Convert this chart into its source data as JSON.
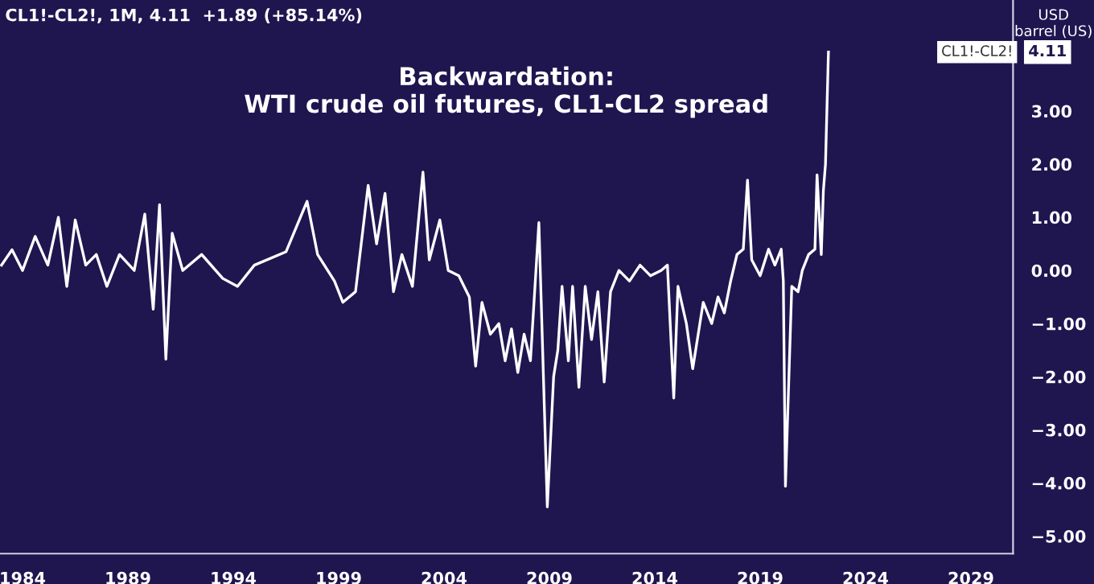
{
  "chart_data": {
    "type": "line",
    "title": "Backwardation:\nWTI crude oil futures, CL1-CL2 spread",
    "subtitle": "CL1!-CL2!, 1M, 4.11  +1.89 (+85.14%)",
    "ylabel": "USD\nbarrel (US)",
    "annotations": [
      "CL1!-CL2!",
      "4.11"
    ],
    "series": [
      {
        "color": "#ffffff",
        "x": [
          1983.0,
          1983.5,
          1984.0,
          1984.6,
          1985.2,
          1985.7,
          1986.1,
          1986.5,
          1987.0,
          1987.5,
          1988.0,
          1988.6,
          1989.3,
          1989.8,
          1990.2,
          1990.5,
          1990.8,
          1991.1,
          1991.6,
          1992.5,
          1993.5,
          1994.2,
          1995.0,
          1996.5,
          1997.5,
          1998.0,
          1998.8,
          1999.2,
          1999.8,
          2000.4,
          2000.8,
          2001.2,
          2001.6,
          2002.0,
          2002.5,
          2003.0,
          2003.3,
          2003.8,
          2004.2,
          2004.7,
          2005.2,
          2005.5,
          2005.8,
          2006.2,
          2006.6,
          2006.9,
          2007.2,
          2007.5,
          2007.8,
          2008.1,
          2008.5,
          2008.9,
          2009.2,
          2009.4,
          2009.6,
          2009.9,
          2010.1,
          2010.4,
          2010.7,
          2011.0,
          2011.3,
          2011.6,
          2011.9,
          2012.3,
          2012.8,
          2013.3,
          2013.8,
          2014.3,
          2014.6,
          2014.9,
          2015.1,
          2015.5,
          2015.8,
          2016.3,
          2016.7,
          2017.0,
          2017.3,
          2017.6,
          2017.9,
          2018.2,
          2018.4,
          2018.6,
          2019.0,
          2019.4,
          2019.7,
          2020.0,
          2020.1,
          2020.2,
          2020.5,
          2020.8,
          2021.0,
          2021.3,
          2021.6,
          2021.7,
          2021.9,
          2022.0,
          2022.1,
          2022.24
        ],
        "values": [
          0.1,
          0.39,
          0.0,
          0.64,
          0.1,
          1.0,
          -0.3,
          0.95,
          0.1,
          0.3,
          -0.3,
          0.3,
          0.0,
          1.06,
          -0.73,
          1.24,
          -1.67,
          0.7,
          0.0,
          0.3,
          -0.15,
          -0.3,
          0.1,
          0.35,
          1.3,
          0.3,
          -0.2,
          -0.6,
          -0.4,
          1.6,
          0.5,
          1.45,
          -0.4,
          0.3,
          -0.3,
          1.85,
          0.2,
          0.95,
          0.0,
          -0.1,
          -0.5,
          -1.8,
          -0.6,
          -1.2,
          -1.0,
          -1.7,
          -1.1,
          -1.92,
          -1.2,
          -1.7,
          0.9,
          -4.45,
          -2.0,
          -1.5,
          -0.3,
          -1.7,
          -0.3,
          -2.2,
          -0.3,
          -1.3,
          -0.4,
          -2.1,
          -0.4,
          0.0,
          -0.2,
          0.1,
          -0.1,
          0.0,
          0.1,
          -2.4,
          -0.3,
          -1.0,
          -1.85,
          -0.6,
          -1.0,
          -0.5,
          -0.8,
          -0.2,
          0.3,
          0.4,
          1.7,
          0.2,
          -0.1,
          0.4,
          0.1,
          0.4,
          -0.2,
          -4.06,
          -0.3,
          -0.4,
          0.0,
          0.3,
          0.4,
          1.8,
          0.3,
          1.5,
          2.0,
          4.11
        ]
      }
    ],
    "xlim": [
      1982.93,
      2031.0
    ],
    "xticks": [
      1984,
      1989,
      1994,
      1999,
      2004,
      2009,
      2014,
      2019,
      2024,
      2029
    ],
    "ylim": [
      -5.33,
      5.09
    ],
    "yticks": [
      {
        "value": -5,
        "label": "−5.00"
      },
      {
        "value": -4,
        "label": "−4.00"
      },
      {
        "value": -3,
        "label": "−3.00"
      },
      {
        "value": -2,
        "label": "−2.00"
      },
      {
        "value": -1,
        "label": "−1.00"
      },
      {
        "value": 0,
        "label": "0.00"
      },
      {
        "value": 1,
        "label": "1.00"
      },
      {
        "value": 2,
        "label": "2.00"
      },
      {
        "value": 3,
        "label": "3.00"
      }
    ],
    "grid": false,
    "legend": false,
    "marker": "none",
    "line_style": "solid"
  }
}
